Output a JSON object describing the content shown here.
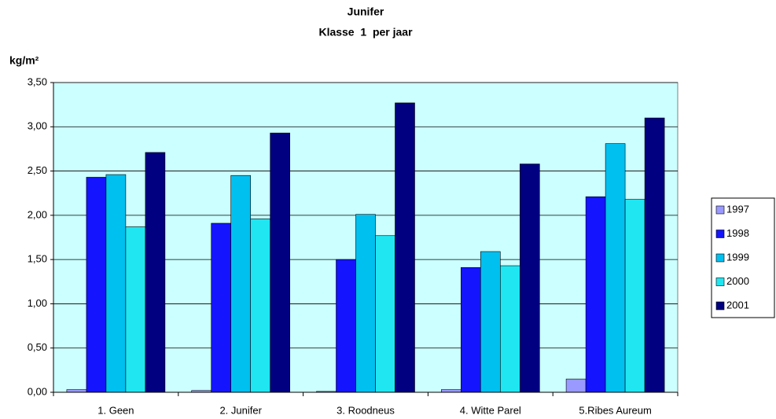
{
  "chart_data": {
    "type": "bar",
    "title": "Junifer",
    "subtitle": "Klasse  1  per jaar",
    "y_label": "kg/m²",
    "categories": [
      "1. Geen",
      "2. Junifer",
      "3. Roodneus",
      "4. Witte Parel",
      "5.Ribes Aureum"
    ],
    "series": [
      {
        "name": "1997",
        "color": "#9999ff",
        "values": [
          0.03,
          0.02,
          0.01,
          0.03,
          0.15
        ]
      },
      {
        "name": "1998",
        "color": "#1414ff",
        "values": [
          2.43,
          1.91,
          1.5,
          1.41,
          2.21
        ]
      },
      {
        "name": "1999",
        "color": "#00c0f0",
        "values": [
          2.46,
          2.45,
          2.01,
          1.59,
          2.81
        ]
      },
      {
        "name": "2000",
        "color": "#20e6f2",
        "values": [
          1.87,
          1.96,
          1.77,
          1.43,
          2.18
        ]
      },
      {
        "name": "2001",
        "color": "#000080",
        "values": [
          2.71,
          2.93,
          3.27,
          2.58,
          3.1
        ]
      }
    ],
    "ylim": [
      0,
      3.5
    ],
    "yticks": [
      {
        "value": 0,
        "label": "0,00"
      },
      {
        "value": 0.5,
        "label": "0,50"
      },
      {
        "value": 1,
        "label": "1,00"
      },
      {
        "value": 1.5,
        "label": "1,50"
      },
      {
        "value": 2,
        "label": "2,00"
      },
      {
        "value": 2.5,
        "label": "2,50"
      },
      {
        "value": 3,
        "label": "3,00"
      },
      {
        "value": 3.5,
        "label": "3,50"
      }
    ],
    "grid": true,
    "plot_background": "#ccffff",
    "legend": "right"
  }
}
